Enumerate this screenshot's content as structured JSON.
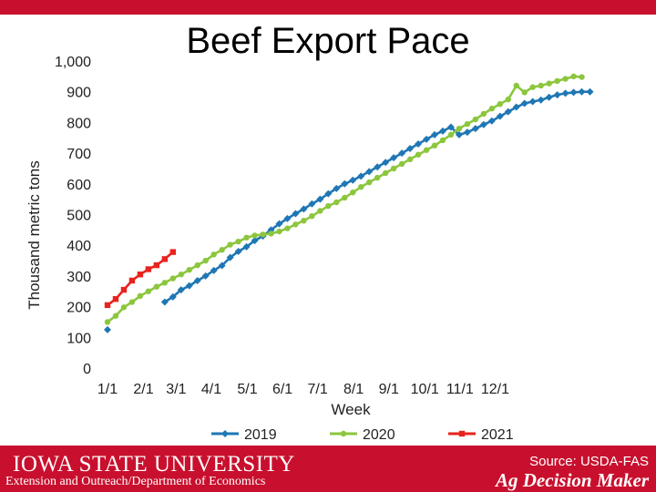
{
  "chart_data": {
    "type": "line",
    "title": "Beef Export Pace",
    "xlabel": "Week",
    "ylabel": "Thousand metric tons",
    "ylim": [
      0,
      1000
    ],
    "yticks": [
      "0",
      "100",
      "200",
      "300",
      "400",
      "500",
      "600",
      "700",
      "800",
      "900",
      "1,000"
    ],
    "xticks": [
      "1/1",
      "2/1",
      "3/1",
      "4/1",
      "5/1",
      "6/1",
      "7/1",
      "8/1",
      "9/1",
      "10/1",
      "11/1",
      "12/1"
    ],
    "x_unit": "week",
    "legend": "bottom",
    "grid": false,
    "series": [
      {
        "name": "2019",
        "color": "#1f77b4",
        "marker": "diamond",
        "points": [
          [
            1,
            125
          ],
          [
            8,
            215
          ],
          [
            9,
            232
          ],
          [
            10,
            255
          ],
          [
            11,
            268
          ],
          [
            12,
            285
          ],
          [
            13,
            300
          ],
          [
            14,
            318
          ],
          [
            15,
            334
          ],
          [
            16,
            360
          ],
          [
            17,
            380
          ],
          [
            18,
            395
          ],
          [
            19,
            415
          ],
          [
            20,
            430
          ],
          [
            21,
            450
          ],
          [
            22,
            470
          ],
          [
            23,
            487
          ],
          [
            24,
            503
          ],
          [
            25,
            518
          ],
          [
            26,
            535
          ],
          [
            27,
            550
          ],
          [
            28,
            568
          ],
          [
            29,
            585
          ],
          [
            30,
            600
          ],
          [
            31,
            612
          ],
          [
            32,
            625
          ],
          [
            33,
            640
          ],
          [
            34,
            655
          ],
          [
            35,
            670
          ],
          [
            36,
            685
          ],
          [
            37,
            700
          ],
          [
            38,
            715
          ],
          [
            39,
            730
          ],
          [
            40,
            745
          ],
          [
            41,
            760
          ],
          [
            42,
            772
          ],
          [
            43,
            785
          ],
          [
            44,
            760
          ],
          [
            45,
            768
          ],
          [
            46,
            780
          ],
          [
            47,
            793
          ],
          [
            48,
            805
          ],
          [
            49,
            820
          ],
          [
            50,
            835
          ],
          [
            51,
            850
          ],
          [
            52,
            862
          ],
          [
            53,
            868
          ],
          [
            54,
            873
          ],
          [
            55,
            882
          ],
          [
            56,
            890
          ],
          [
            57,
            895
          ],
          [
            58,
            898
          ],
          [
            59,
            900
          ],
          [
            60,
            900
          ]
        ]
      },
      {
        "name": "2020",
        "color": "#8cc63e",
        "marker": "circle",
        "points": [
          [
            1,
            150
          ],
          [
            2,
            170
          ],
          [
            3,
            198
          ],
          [
            4,
            215
          ],
          [
            5,
            235
          ],
          [
            6,
            250
          ],
          [
            7,
            265
          ],
          [
            8,
            278
          ],
          [
            9,
            292
          ],
          [
            10,
            305
          ],
          [
            11,
            320
          ],
          [
            12,
            335
          ],
          [
            13,
            350
          ],
          [
            14,
            370
          ],
          [
            15,
            385
          ],
          [
            16,
            402
          ],
          [
            17,
            412
          ],
          [
            18,
            425
          ],
          [
            19,
            432
          ],
          [
            20,
            435
          ],
          [
            21,
            438
          ],
          [
            22,
            445
          ],
          [
            23,
            455
          ],
          [
            24,
            468
          ],
          [
            25,
            480
          ],
          [
            26,
            495
          ],
          [
            27,
            512
          ],
          [
            28,
            528
          ],
          [
            29,
            540
          ],
          [
            30,
            555
          ],
          [
            31,
            572
          ],
          [
            32,
            590
          ],
          [
            33,
            605
          ],
          [
            34,
            620
          ],
          [
            35,
            635
          ],
          [
            36,
            650
          ],
          [
            37,
            665
          ],
          [
            38,
            680
          ],
          [
            39,
            695
          ],
          [
            40,
            710
          ],
          [
            41,
            725
          ],
          [
            42,
            742
          ],
          [
            43,
            760
          ],
          [
            44,
            780
          ],
          [
            45,
            795
          ],
          [
            46,
            810
          ],
          [
            47,
            828
          ],
          [
            48,
            845
          ],
          [
            49,
            860
          ],
          [
            50,
            875
          ],
          [
            51,
            920
          ],
          [
            52,
            898
          ],
          [
            53,
            915
          ],
          [
            54,
            920
          ],
          [
            55,
            927
          ],
          [
            56,
            935
          ],
          [
            57,
            942
          ],
          [
            58,
            950
          ],
          [
            59,
            948
          ]
        ]
      },
      {
        "name": "2021",
        "color": "#e8231e",
        "marker": "square",
        "points": [
          [
            1,
            205
          ],
          [
            2,
            225
          ],
          [
            3,
            255
          ],
          [
            4,
            285
          ],
          [
            5,
            305
          ],
          [
            6,
            322
          ],
          [
            7,
            335
          ],
          [
            8,
            355
          ],
          [
            9,
            378
          ]
        ]
      }
    ]
  },
  "footer": {
    "university": "IOWA STATE UNIVERSITY",
    "department": "Extension and Outreach/Department of Economics",
    "source": "Source: USDA-FAS",
    "brand": "Ag Decision Maker"
  }
}
